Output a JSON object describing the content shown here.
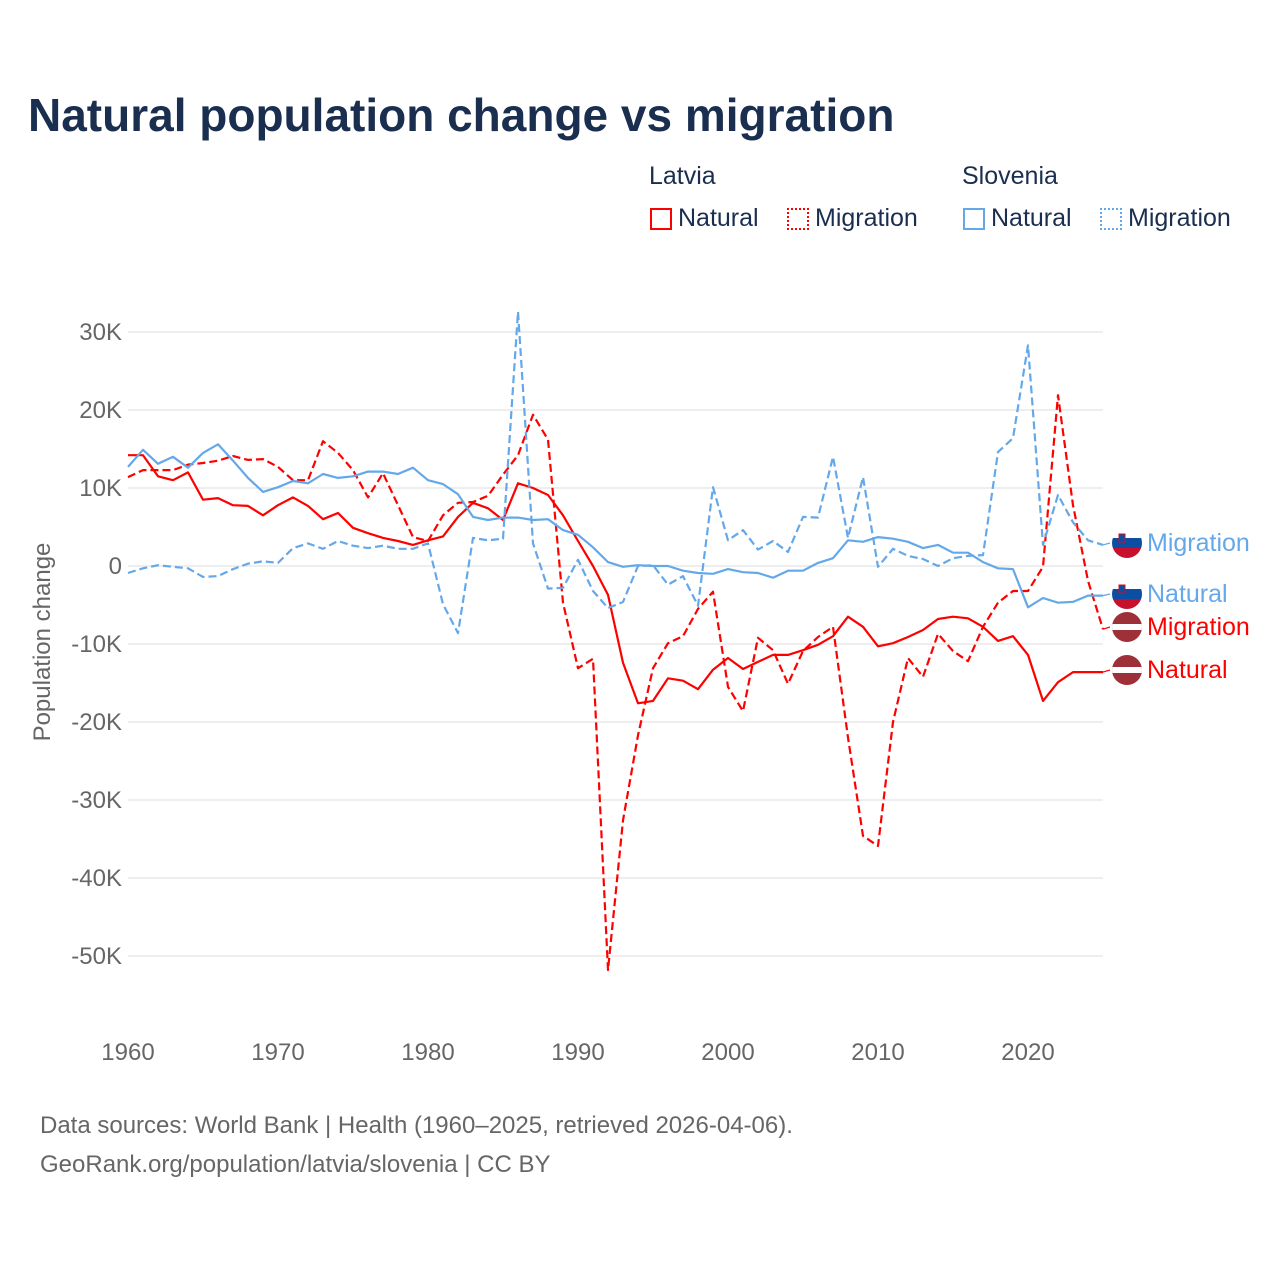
{
  "chart_data": {
    "type": "line",
    "title": "Natural population change vs migration",
    "xlabel": "",
    "ylabel": "Population change",
    "xlim": [
      1960,
      2025
    ],
    "ylim": [
      -55000,
      33000
    ],
    "x_ticks": [
      "1960",
      "1970",
      "1980",
      "1990",
      "2000",
      "2010",
      "2020"
    ],
    "y_ticks": [
      {
        "v": 30000,
        "label": "30K"
      },
      {
        "v": 20000,
        "label": "20K"
      },
      {
        "v": 10000,
        "label": "10K"
      },
      {
        "v": 0,
        "label": "0"
      },
      {
        "v": -10000,
        "label": "-10K"
      },
      {
        "v": -20000,
        "label": "-20K"
      },
      {
        "v": -30000,
        "label": "-30K"
      },
      {
        "v": -40000,
        "label": "-40K"
      },
      {
        "v": -50000,
        "label": "-50K"
      }
    ],
    "grid": true,
    "legend_groups": [
      {
        "country": "Latvia",
        "items": [
          "Natural",
          "Migration"
        ]
      },
      {
        "country": "Slovenia",
        "items": [
          "Natural",
          "Migration"
        ]
      }
    ],
    "x_start": 1960,
    "series": [
      {
        "name": "Natural",
        "country": "Latvia",
        "color": "#ff0000",
        "dashed": false,
        "values": [
          14.2,
          14.2,
          11.5,
          11,
          12,
          8.5,
          8.7,
          7.8,
          7.7,
          6.5,
          7.8,
          8.8,
          7.7,
          6,
          6.8,
          4.9,
          4.2,
          3.6,
          3.2,
          2.7,
          3.3,
          3.8,
          6.3,
          8.1,
          7.4,
          5.9,
          10.6,
          10,
          9.1,
          6.5,
          3.2,
          0,
          -3.7,
          -12.4,
          -17.6,
          -17.3,
          -14.4,
          -14.7,
          -15.8,
          -13.3,
          -11.8,
          -13.2,
          -12.3,
          -11.4,
          -11.4,
          -10.8,
          -10.1,
          -9,
          -6.5,
          -7.8,
          -10.3,
          -9.9,
          -9.1,
          -8.2,
          -6.8,
          -6.5,
          -6.7,
          -7.8,
          -9.6,
          -9,
          -11.4,
          -17.3,
          -14.9,
          -13.6,
          -13.6,
          -13.6
        ]
      },
      {
        "name": "Migration",
        "country": "Latvia",
        "color": "#ff0000",
        "dashed": true,
        "values": [
          11.4,
          12.3,
          12.3,
          12.3,
          13,
          13.2,
          13.5,
          14.1,
          13.6,
          13.7,
          12.7,
          11,
          11,
          16,
          14.5,
          12.3,
          8.8,
          11.9,
          7.8,
          3.7,
          3.2,
          6.5,
          8.1,
          8.2,
          9,
          11.7,
          14.2,
          19.4,
          16.2,
          -4.7,
          -13.1,
          -11.9,
          -51.8,
          -32.6,
          -21.7,
          -13.1,
          -9.9,
          -9,
          -5.5,
          -3.3,
          -15.5,
          -18.6,
          -9.2,
          -10.8,
          -15.1,
          -10.9,
          -9.1,
          -7.8,
          -22,
          -34.6,
          -35.9,
          -20,
          -11.8,
          -14.2,
          -8.7,
          -10.9,
          -12.2,
          -7.8,
          -4.7,
          -3.2,
          -3.2,
          -0.1,
          21.9,
          7.8,
          -1.9,
          -8.1
        ]
      },
      {
        "name": "Natural",
        "country": "Slovenia",
        "color": "#64a8ea",
        "dashed": false,
        "values": [
          12.7,
          14.9,
          13.1,
          14,
          12.6,
          14.5,
          15.6,
          13.5,
          11.3,
          9.5,
          10.1,
          10.9,
          10.6,
          11.8,
          11.3,
          11.5,
          12.1,
          12.1,
          11.8,
          12.6,
          11,
          10.5,
          9.2,
          6.3,
          5.9,
          6.2,
          6.2,
          5.9,
          6,
          4.6,
          4,
          2.4,
          0.5,
          -0.1,
          0.1,
          0,
          0,
          -0.6,
          -0.9,
          -1,
          -0.4,
          -0.8,
          -0.9,
          -1.5,
          -0.6,
          -0.6,
          0.4,
          1,
          3.3,
          3.1,
          3.7,
          3.5,
          3.1,
          2.3,
          2.7,
          1.7,
          1.7,
          0.5,
          -0.3,
          -0.4,
          -5.3,
          -4.1,
          -4.7,
          -4.6,
          -3.8,
          -3.8
        ]
      },
      {
        "name": "Migration",
        "country": "Slovenia",
        "color": "#64a8ea",
        "dashed": true,
        "values": [
          -0.9,
          -0.3,
          0.1,
          -0.1,
          -0.3,
          -1.4,
          -1.3,
          -0.4,
          0.3,
          0.6,
          0.4,
          2.3,
          2.9,
          2.2,
          3.2,
          2.6,
          2.3,
          2.6,
          2.2,
          2.2,
          2.9,
          -4.9,
          -8.6,
          3.6,
          3.3,
          3.5,
          32.6,
          2.9,
          -2.9,
          -2.8,
          0.8,
          -3.2,
          -5.4,
          -4.6,
          0,
          0.1,
          -2.4,
          -1.3,
          -5.1,
          10.1,
          3.3,
          4.6,
          2.1,
          3.2,
          1.8,
          6.3,
          6.2,
          14,
          3.6,
          11.4,
          -0.1,
          2.2,
          1.3,
          0.9,
          0,
          1,
          1.3,
          1.4,
          14.6,
          16.4,
          28.3,
          2.7,
          9.1,
          5.6,
          3.3,
          2.7
        ]
      }
    ],
    "values_unit": "thousands"
  },
  "footer": {
    "line1": "Data sources: World Bank | Health (1960–2025, retrieved 2026-04-06).",
    "line2": "GeoRank.org/population/latvia/slovenia | CC BY"
  }
}
